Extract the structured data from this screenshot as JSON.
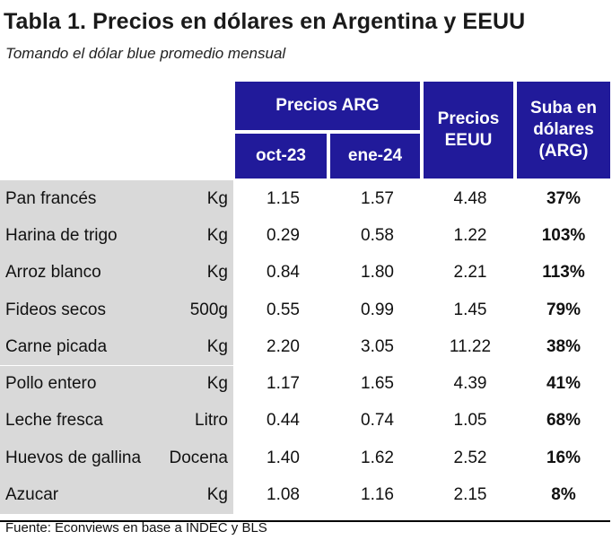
{
  "title": "Tabla 1. Precios en dólares en Argentina y EEUU",
  "subtitle": "Tomando el dólar blue promedio mensual",
  "headers": {
    "arg_group": "Precios ARG",
    "oct": "oct-23",
    "ene": "ene-24",
    "usa": "Precios\nEEUU",
    "suba": "Suba en\ndólares\n(ARG)"
  },
  "colors": {
    "header_bg": "#211a9a",
    "header_text": "#ffffff",
    "label_bg": "#d9d9d9"
  },
  "rows": [
    {
      "product": "Pan francés",
      "unit": "Kg",
      "oct": "1.15",
      "ene": "1.57",
      "usa": "4.48",
      "suba": "37%"
    },
    {
      "product": "Harina de trigo",
      "unit": "Kg",
      "oct": "0.29",
      "ene": "0.58",
      "usa": "1.22",
      "suba": "103%"
    },
    {
      "product": "Arroz blanco",
      "unit": "Kg",
      "oct": "0.84",
      "ene": "1.80",
      "usa": "2.21",
      "suba": "113%"
    },
    {
      "product": "Fideos secos",
      "unit": "500g",
      "oct": "0.55",
      "ene": "0.99",
      "usa": "1.45",
      "suba": "79%"
    },
    {
      "product": "Carne picada",
      "unit": "Kg",
      "oct": "2.20",
      "ene": "3.05",
      "usa": "11.22",
      "suba": "38%"
    },
    {
      "product": "Pollo entero",
      "unit": "Kg",
      "oct": "1.17",
      "ene": "1.65",
      "usa": "4.39",
      "suba": "41%"
    },
    {
      "product": "Leche fresca",
      "unit": "Litro",
      "oct": "0.44",
      "ene": "0.74",
      "usa": "1.05",
      "suba": "68%"
    },
    {
      "product": "Huevos de gallina",
      "unit": "Docena",
      "oct": "1.40",
      "ene": "1.62",
      "usa": "2.52",
      "suba": "16%"
    },
    {
      "product": "Azucar",
      "unit": "Kg",
      "oct": "1.08",
      "ene": "1.16",
      "usa": "2.15",
      "suba": "8%"
    }
  ],
  "source": "Fuente: Econviews en base a INDEC y BLS"
}
